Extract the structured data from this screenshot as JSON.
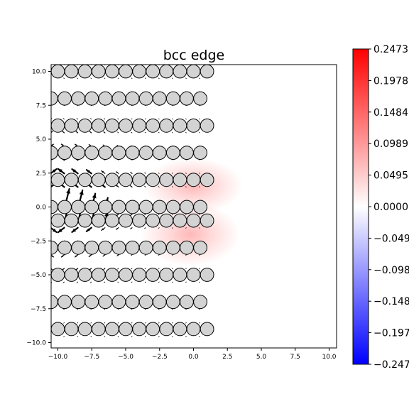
{
  "chart_data": {
    "type": "vector-field",
    "title": "bcc edge",
    "xlabel": "",
    "ylabel": "",
    "xlim": [
      -10.5,
      10.5
    ],
    "ylim": [
      -10.5,
      10.5
    ],
    "x_ticks": [
      -10.0,
      -7.5,
      -5.0,
      -2.5,
      0.0,
      2.5,
      5.0,
      7.5,
      10.0
    ],
    "x_tick_labels": [
      "−10.0",
      "−7.5",
      "−5.0",
      "−2.5",
      "0.0",
      "2.5",
      "5.0",
      "7.5",
      "10.0"
    ],
    "y_ticks": [
      -10.0,
      -7.5,
      -5.0,
      -2.5,
      0.0,
      2.5,
      5.0,
      7.5,
      10.0
    ],
    "y_tick_labels": [
      "−10.0",
      "−7.5",
      "−5.0",
      "−2.5",
      "0.0",
      "2.5",
      "5.0",
      "7.5",
      "10.0"
    ],
    "grid": false,
    "atom_rows": [
      {
        "y": 10.0,
        "x_start": -10.0,
        "spacing": 1.0
      },
      {
        "y": 8.0,
        "x_start": -10.5,
        "spacing": 1.0
      },
      {
        "y": 6.0,
        "x_start": -10.0,
        "spacing": 1.0
      },
      {
        "y": 4.0,
        "x_start": -10.5,
        "spacing": 1.0
      },
      {
        "y": 2.0,
        "x_start": -10.0,
        "spacing": 1.0
      },
      {
        "y": 0.0,
        "x_start": -10.5,
        "spacing": 1.0
      },
      {
        "y": -1.0,
        "x_start": -10.0,
        "spacing": 1.0
      },
      {
        "y": -3.0,
        "x_start": -10.5,
        "spacing": 1.0
      },
      {
        "y": -5.0,
        "x_start": -10.0,
        "spacing": 1.0
      },
      {
        "y": -7.0,
        "x_start": -10.5,
        "spacing": 1.0
      },
      {
        "y": -9.0,
        "x_start": -10.0,
        "spacing": 1.0
      }
    ],
    "atom_color": "#d3d3d3",
    "colorbar": {
      "min": -0.2473,
      "max": 0.2473,
      "ticks": [
        0.2473,
        0.1978,
        0.1484,
        0.0989,
        0.0495,
        0.0,
        -0.0495,
        -0.0989,
        -0.1484,
        -0.1978,
        -0.2473
      ],
      "tick_labels": [
        "0.2473",
        "0.1978",
        "0.1484",
        "0.0989",
        "0.0495",
        "0.0000",
        "−0.0495",
        "−0.0989",
        "−0.1484",
        "−0.1978",
        "−0.2473"
      ],
      "colormap": "bwr",
      "low_color": "#0000ff",
      "mid_color": "#ffffff",
      "high_color": "#ff0000"
    },
    "field_peak": 0.12
  }
}
